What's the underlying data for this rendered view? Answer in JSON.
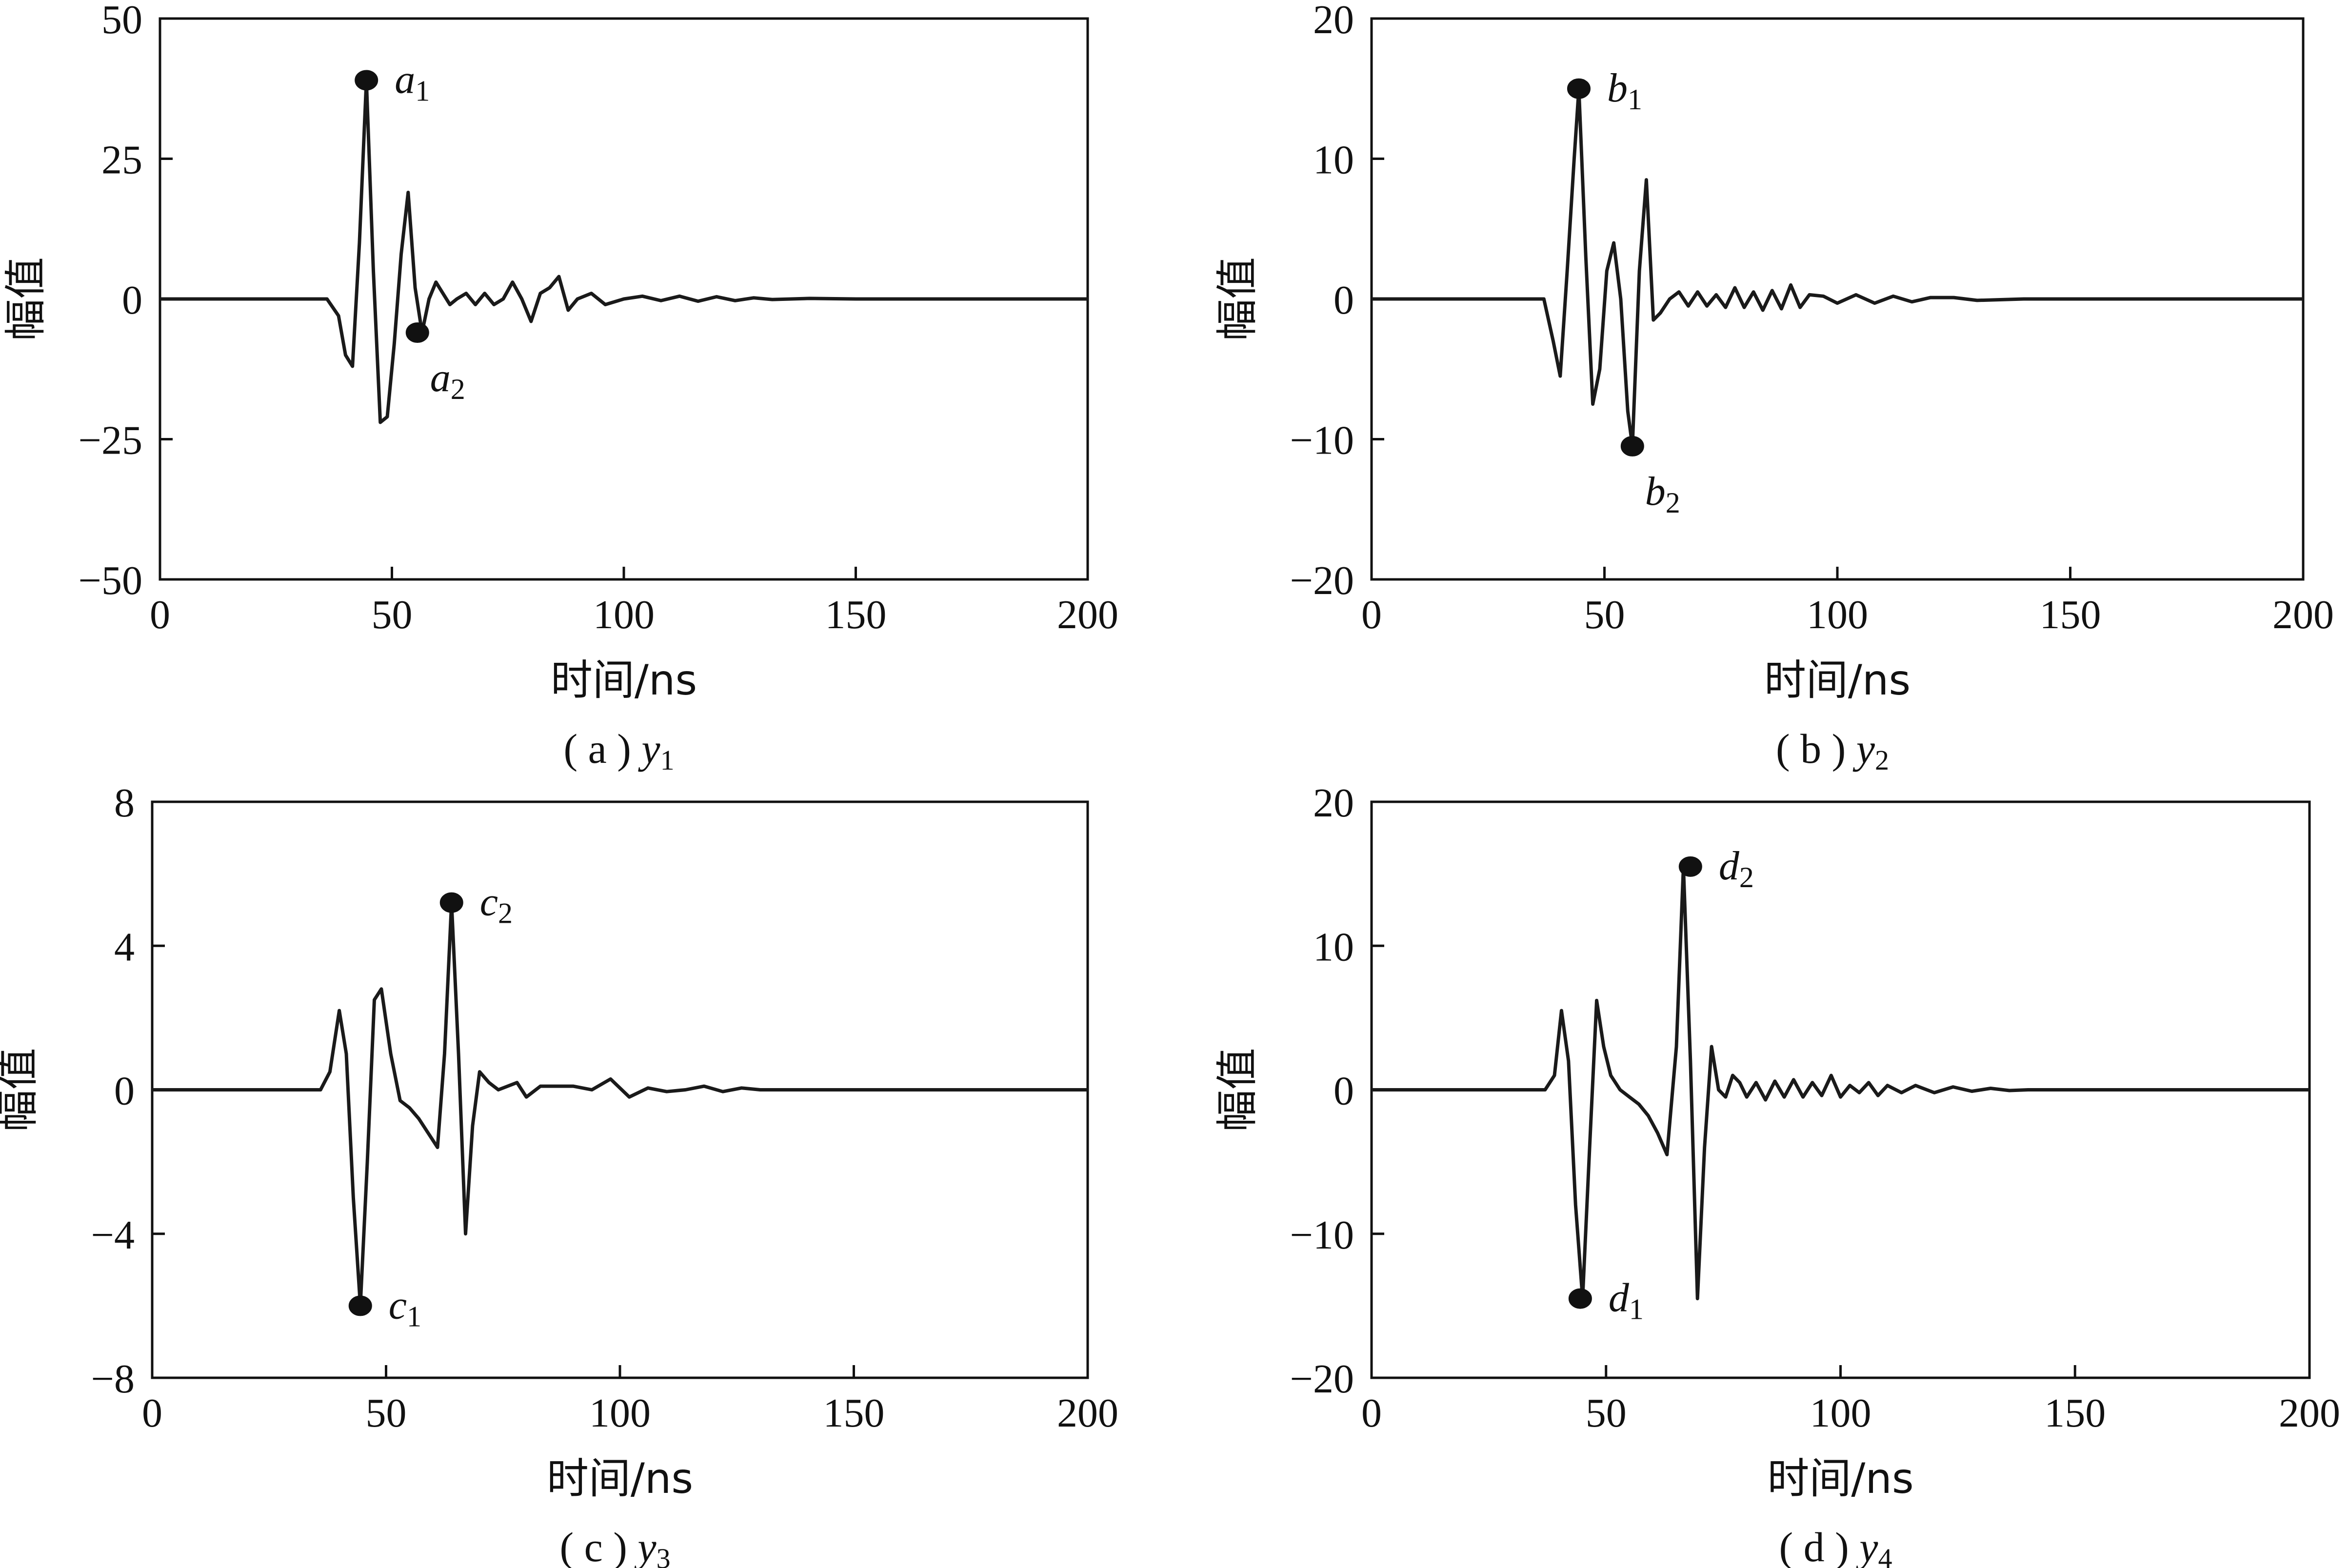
{
  "chart_data": [
    {
      "type": "line",
      "panel": "a",
      "caption": "( a ) y1",
      "caption_prefix": "( a ) ",
      "caption_var": "y",
      "caption_sub": "1",
      "xlabel": "时间/ns",
      "ylabel": "幅值",
      "xlim": [
        0,
        200
      ],
      "ylim": [
        -50,
        50
      ],
      "xticks": [
        0,
        50,
        100,
        150,
        200
      ],
      "yticks": [
        -50,
        -25,
        0,
        25,
        50
      ],
      "ytick_labels": [
        "−50",
        "−25",
        "0",
        "25",
        "50"
      ],
      "series": [
        {
          "x": [
            0,
            36,
            38.5,
            40,
            41.5,
            43,
            44.5,
            46,
            47.5,
            49,
            50.5,
            52,
            53.5,
            55,
            56.5,
            58,
            59.5,
            61,
            62.5,
            64,
            66,
            68,
            70,
            72,
            74,
            76,
            78,
            80,
            82,
            84,
            86,
            88,
            90,
            93,
            96,
            100,
            104,
            108,
            112,
            116,
            120,
            124,
            128,
            132,
            140,
            150,
            160,
            175,
            200
          ],
          "y": [
            0,
            0,
            -3,
            -10,
            -12,
            10,
            39,
            5,
            -22,
            -21,
            -8,
            8,
            19,
            2,
            -6,
            0,
            3,
            1,
            -1,
            0,
            1,
            -1,
            1,
            -1,
            0,
            3,
            0,
            -4,
            1,
            2,
            4,
            -2,
            0,
            1,
            -1,
            0,
            0.5,
            -0.3,
            0.5,
            -0.4,
            0.4,
            -0.3,
            0.2,
            -0.1,
            0.1,
            0,
            0,
            0,
            0
          ]
        }
      ],
      "annotations": [
        {
          "var": "a",
          "sub": "1",
          "x": 44.5,
          "y": 39,
          "pos": "right"
        },
        {
          "var": "a",
          "sub": "2",
          "x": 55.5,
          "y": -6,
          "pos": "below-right"
        }
      ]
    },
    {
      "type": "line",
      "panel": "b",
      "caption": "( b ) y2",
      "caption_prefix": "( b ) ",
      "caption_var": "y",
      "caption_sub": "2",
      "xlabel": "时间/ns",
      "ylabel": "幅值",
      "xlim": [
        0,
        200
      ],
      "ylim": [
        -20,
        20
      ],
      "xticks": [
        0,
        50,
        100,
        150,
        200
      ],
      "yticks": [
        -20,
        -10,
        0,
        10,
        20
      ],
      "ytick_labels": [
        "−20",
        "−10",
        "0",
        "10",
        "20"
      ],
      "series": [
        {
          "x": [
            0,
            37,
            39,
            40.5,
            42,
            43.5,
            44.5,
            46,
            47.5,
            49,
            50.5,
            52,
            53.5,
            55,
            56,
            57.5,
            59,
            60.5,
            62,
            64,
            66,
            68,
            70,
            72,
            74,
            76,
            78,
            80,
            82,
            84,
            86,
            88,
            90,
            92,
            94,
            97,
            100,
            104,
            108,
            112,
            116,
            120,
            125,
            130,
            140,
            150,
            200
          ],
          "y": [
            0,
            0,
            -3,
            -5.5,
            2,
            10,
            15,
            3,
            -7.5,
            -5,
            2,
            4,
            0,
            -8,
            -10.5,
            2,
            8.5,
            -1.5,
            -1,
            0,
            0.5,
            -0.5,
            0.5,
            -0.5,
            0.3,
            -0.6,
            0.8,
            -0.6,
            0.5,
            -0.8,
            0.6,
            -0.7,
            1,
            -0.6,
            0.3,
            0.2,
            -0.3,
            0.3,
            -0.3,
            0.2,
            -0.2,
            0.1,
            0.1,
            -0.1,
            0,
            0,
            0
          ]
        }
      ],
      "annotations": [
        {
          "var": "b",
          "sub": "1",
          "x": 44.5,
          "y": 15,
          "pos": "right"
        },
        {
          "var": "b",
          "sub": "2",
          "x": 56,
          "y": -10.5,
          "pos": "below-right"
        }
      ]
    },
    {
      "type": "line",
      "panel": "c",
      "caption": "( c ) y3",
      "caption_prefix": "( c ) ",
      "caption_var": "y",
      "caption_sub": "3",
      "xlabel": "时间/ns",
      "ylabel": "幅值",
      "xlim": [
        0,
        200
      ],
      "ylim": [
        -8,
        8
      ],
      "xticks": [
        0,
        50,
        100,
        150,
        200
      ],
      "yticks": [
        -8,
        -4,
        0,
        4,
        8
      ],
      "ytick_labels": [
        "−8",
        "−4",
        "0",
        "4",
        "8"
      ],
      "series": [
        {
          "x": [
            0,
            36,
            38,
            40,
            41.5,
            43,
            44.5,
            46,
            47.5,
            49,
            51,
            53,
            55,
            57,
            59,
            61,
            62.5,
            64,
            65.5,
            67,
            68.5,
            70,
            72,
            74,
            76,
            78,
            80,
            83,
            86,
            90,
            94,
            98,
            102,
            106,
            110,
            114,
            118,
            122,
            126,
            130,
            140,
            150,
            200
          ],
          "y": [
            0,
            0,
            0.5,
            2.2,
            1,
            -3,
            -6,
            -2,
            2.5,
            2.8,
            1,
            -0.3,
            -0.5,
            -0.8,
            -1.2,
            -1.6,
            1,
            5.2,
            1,
            -4,
            -1,
            0.5,
            0.2,
            0,
            0.1,
            0.2,
            -0.2,
            0.1,
            0.1,
            0.1,
            0,
            0.3,
            -0.2,
            0.05,
            -0.05,
            0,
            0.1,
            -0.05,
            0.05,
            0,
            0,
            0,
            0
          ]
        }
      ],
      "annotations": [
        {
          "var": "c",
          "sub": "1",
          "x": 44.5,
          "y": -6,
          "pos": "right"
        },
        {
          "var": "c",
          "sub": "2",
          "x": 64,
          "y": 5.2,
          "pos": "right"
        }
      ]
    },
    {
      "type": "line",
      "panel": "d",
      "caption": "( d ) y4",
      "caption_prefix": "( d ) ",
      "caption_var": "y",
      "caption_sub": "4",
      "xlabel": "时间/ns",
      "ylabel": "幅值",
      "xlim": [
        0,
        200
      ],
      "ylim": [
        -20,
        20
      ],
      "xticks": [
        0,
        50,
        100,
        150,
        200
      ],
      "yticks": [
        -20,
        -10,
        0,
        10,
        20
      ],
      "ytick_labels": [
        "−20",
        "−10",
        "0",
        "10",
        "20"
      ],
      "series": [
        {
          "x": [
            0,
            37,
            39,
            40.5,
            42,
            43.5,
            45,
            46.5,
            48,
            49.5,
            51,
            53,
            55,
            57,
            59,
            61,
            63,
            65,
            66.5,
            68,
            69.5,
            71,
            72.5,
            74,
            75.5,
            77,
            78.5,
            80,
            82,
            84,
            86,
            88,
            90,
            92,
            94,
            96,
            98,
            100,
            102,
            104,
            106,
            108,
            110,
            113,
            116,
            120,
            124,
            128,
            132,
            136,
            140,
            150,
            160,
            200
          ],
          "y": [
            0,
            0,
            1,
            5.5,
            2,
            -8,
            -14.5,
            -4,
            6.2,
            3,
            1,
            0,
            -0.5,
            -1,
            -1.8,
            -3,
            -4.5,
            3,
            15.5,
            2,
            -14.5,
            -4,
            3,
            0,
            -0.5,
            1,
            0.5,
            -0.5,
            0.5,
            -0.7,
            0.6,
            -0.5,
            0.7,
            -0.5,
            0.5,
            -0.4,
            1,
            -0.5,
            0.3,
            -0.2,
            0.5,
            -0.4,
            0.3,
            -0.2,
            0.3,
            -0.2,
            0.2,
            -0.1,
            0.1,
            -0.05,
            0,
            0,
            0,
            0
          ]
        }
      ],
      "annotations": [
        {
          "var": "d",
          "sub": "1",
          "x": 44.5,
          "y": -14.5,
          "pos": "right"
        },
        {
          "var": "d",
          "sub": "2",
          "x": 68,
          "y": 15.5,
          "pos": "right"
        }
      ]
    }
  ]
}
